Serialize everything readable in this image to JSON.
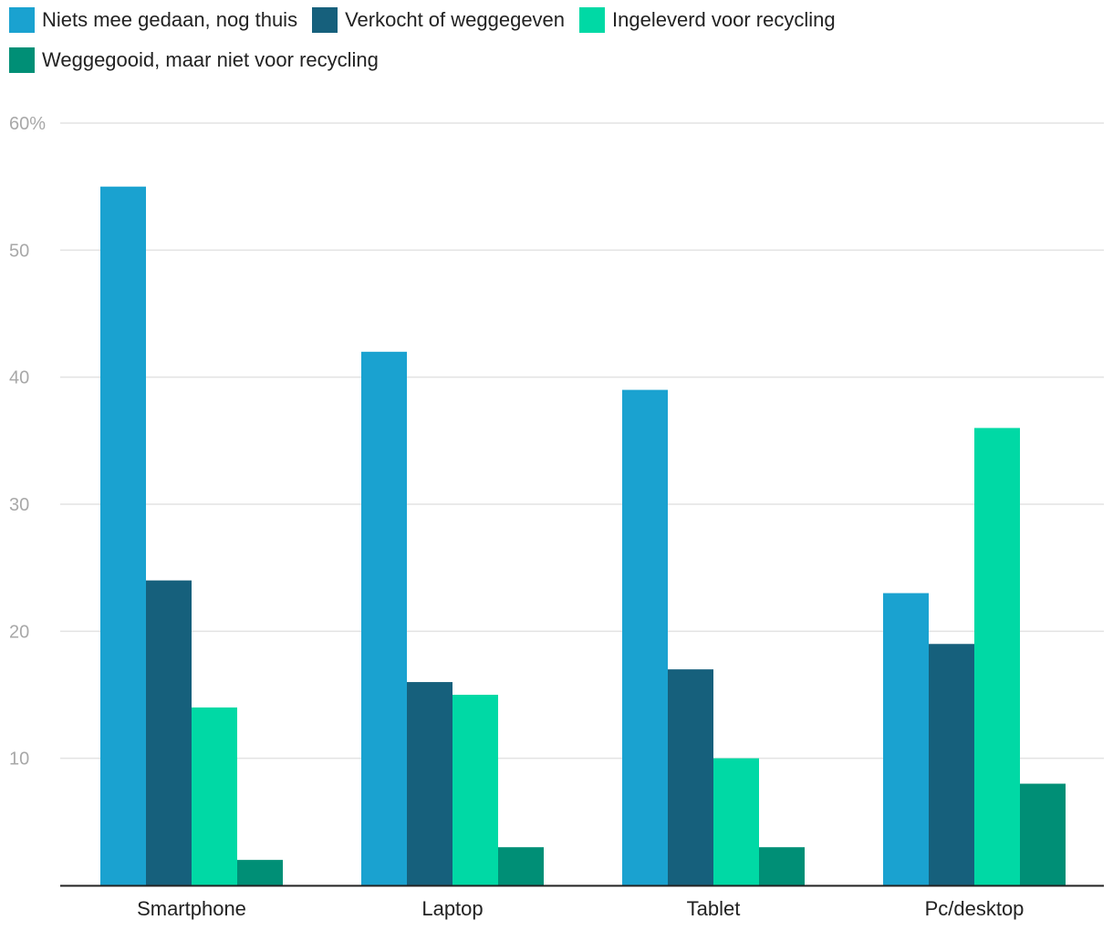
{
  "chart_data": {
    "type": "bar",
    "title": "",
    "xlabel": "",
    "ylabel": "",
    "categories": [
      "Smartphone",
      "Laptop",
      "Tablet",
      "Pc/desktop"
    ],
    "series": [
      {
        "name": "Niets mee gedaan, nog thuis",
        "color": "#1aa2d0",
        "values": [
          55,
          42,
          39,
          23
        ]
      },
      {
        "name": "Verkocht of weggegeven",
        "color": "#16607c",
        "values": [
          24,
          16,
          17,
          19
        ]
      },
      {
        "name": "Ingeleverd voor recycling",
        "color": "#00d9a5",
        "values": [
          14,
          15,
          10,
          36
        ]
      },
      {
        "name": "Weggegooid, maar niet voor recycling",
        "color": "#008f76",
        "values": [
          2,
          3,
          3,
          8
        ]
      }
    ],
    "ylim": [
      0,
      60
    ],
    "yticks": [
      10,
      20,
      30,
      40,
      50,
      60
    ],
    "ytick_labels": [
      "10",
      "20",
      "30",
      "40",
      "50",
      "60%"
    ],
    "grid": true,
    "legend_position": "top-left"
  }
}
